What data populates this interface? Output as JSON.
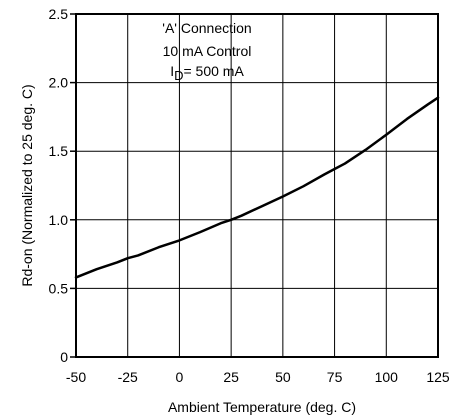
{
  "chart_data": {
    "type": "line",
    "xlabel": "Ambient Temperature (deg. C)",
    "ylabel": "Rd-on (Normalized to 25 deg. C)",
    "xlim": [
      -50,
      125
    ],
    "ylim": [
      0,
      2.5
    ],
    "grid": true,
    "x_ticks": [
      -50,
      -25,
      0,
      25,
      50,
      75,
      100,
      125
    ],
    "x_tick_labels": [
      "-50",
      "-25",
      "0",
      "25",
      "50",
      "75",
      "100",
      "125"
    ],
    "y_ticks": [
      0,
      0.5,
      1.0,
      1.5,
      2.0,
      2.5
    ],
    "y_tick_labels": [
      "0",
      "0.5",
      "1.0",
      "1.5",
      "2.0",
      "2.5"
    ],
    "annotations": {
      "line1": "'A' Connection",
      "line2": "10 mA Control",
      "line3_main": "I",
      "line3_sub": "D",
      "line3_rest": "= 500 mA"
    },
    "series": [
      {
        "color": "#000000",
        "x": [
          -50,
          -40,
          -30,
          -25,
          -20,
          -10,
          0,
          10,
          20,
          25,
          30,
          40,
          50,
          60,
          70,
          75,
          80,
          90,
          100,
          110,
          120,
          125
        ],
        "y": [
          0.58,
          0.64,
          0.69,
          0.72,
          0.74,
          0.8,
          0.85,
          0.91,
          0.975,
          1.0,
          1.03,
          1.1,
          1.17,
          1.245,
          1.33,
          1.37,
          1.41,
          1.51,
          1.62,
          1.735,
          1.84,
          1.89
        ]
      }
    ]
  }
}
